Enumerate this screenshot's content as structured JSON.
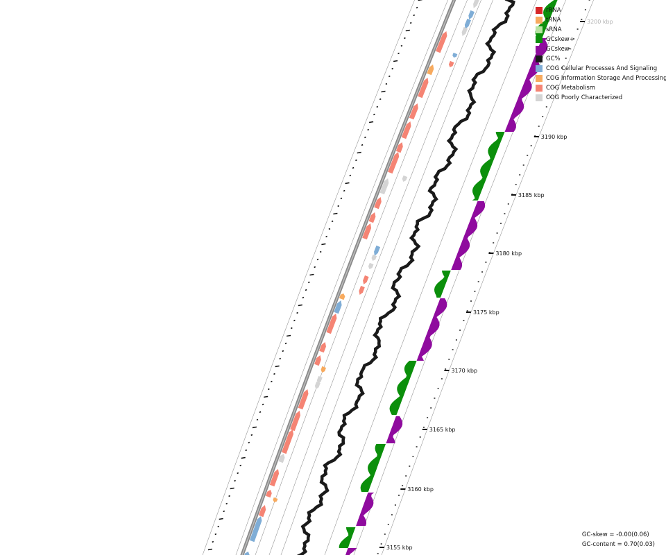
{
  "legend": [
    {
      "label": "rRNA",
      "color": "#d62728"
    },
    {
      "label": "tRNA",
      "color": "#f7aa5e"
    },
    {
      "label": "sRNA",
      "color": "#b6e3a1"
    },
    {
      "label": "GCskew+",
      "color": "#0b8f0b"
    },
    {
      "label": "GCskew-",
      "color": "#8f0b9e"
    },
    {
      "label": "GC%",
      "color": "#1a1a1a"
    },
    {
      "label": "COG Cellular Processes And Signaling",
      "color": "#7fadd6"
    },
    {
      "label": "COG Information Storage And Processing",
      "color": "#f7aa5e"
    },
    {
      "label": "COG Metabolism",
      "color": "#f58474"
    },
    {
      "label": "COG Poorly Characterized",
      "color": "#d4d4d4"
    }
  ],
  "scale_ticks": [
    "3155 kbp",
    "3160 kbp",
    "3165 kbp",
    "3170 kbp",
    "3175 kbp",
    "3180 kbp",
    "3185 kbp",
    "3190 kbp",
    "3200 kbp"
  ],
  "stats": {
    "gc_skew": "GC-skew = -0.00(0.06)",
    "gc_content": "GC-content = 0.70(0.03)"
  }
}
